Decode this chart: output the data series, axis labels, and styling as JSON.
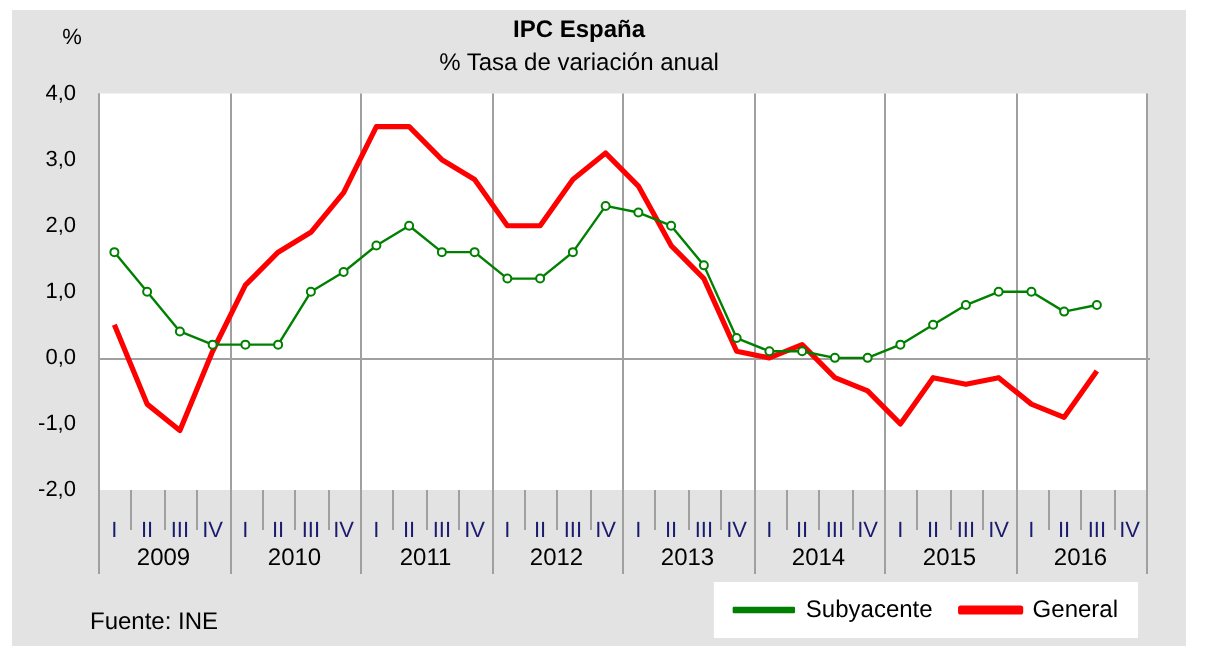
{
  "chart_data": {
    "type": "line",
    "title": "IPC España",
    "subtitle": "% Tasa de variación anual",
    "ylabel": "%",
    "categories": [
      "I",
      "II",
      "III",
      "IV",
      "I",
      "II",
      "III",
      "IV",
      "I",
      "II",
      "III",
      "IV",
      "I",
      "II",
      "III",
      "IV",
      "I",
      "II",
      "III",
      "IV",
      "I",
      "II",
      "III",
      "IV",
      "I",
      "II",
      "III",
      "IV",
      "I",
      "II",
      "III",
      "IV"
    ],
    "series": [
      {
        "name": "Subyacente",
        "color": "#008000",
        "marker": "circle",
        "values": [
          1.6,
          1.0,
          0.4,
          0.2,
          0.2,
          0.2,
          1.0,
          1.3,
          1.7,
          2.0,
          1.6,
          1.6,
          1.2,
          1.2,
          1.6,
          2.3,
          2.2,
          2.0,
          1.4,
          0.3,
          0.1,
          0.1,
          0.0,
          0.0,
          0.2,
          0.5,
          0.8,
          1.0,
          1.0,
          0.7,
          0.8,
          null
        ]
      },
      {
        "name": "General",
        "color": "#ff0000",
        "marker": "none",
        "values": [
          0.5,
          -0.7,
          -1.1,
          0.1,
          1.1,
          1.6,
          1.9,
          2.5,
          3.5,
          3.5,
          3.0,
          2.7,
          2.0,
          2.0,
          2.7,
          3.1,
          2.6,
          1.7,
          1.2,
          0.1,
          0.0,
          0.2,
          -0.3,
          -0.5,
          -1.0,
          -0.3,
          -0.4,
          -0.3,
          -0.7,
          -0.9,
          -0.2,
          null
        ]
      }
    ],
    "ylim": [
      -2,
      4
    ],
    "yticks": [
      {
        "value": -2,
        "label": "-2,0"
      },
      {
        "value": -1,
        "label": "-1,0"
      },
      {
        "value": 0,
        "label": "0,0"
      },
      {
        "value": 1,
        "label": "1,0"
      },
      {
        "value": 2,
        "label": "2,0"
      },
      {
        "value": 3,
        "label": "3,0"
      },
      {
        "value": 4,
        "label": "4,0"
      }
    ],
    "grid": "x",
    "ref_lines": [
      {
        "axis": "y",
        "value": 0,
        "color": "#a0a0a0"
      }
    ],
    "legend": "bottom right",
    "annotations": [
      "2009",
      "2010",
      "2011",
      "2012",
      "2013",
      "2014",
      "2015",
      "2016",
      "Fuente: INE"
    ]
  }
}
